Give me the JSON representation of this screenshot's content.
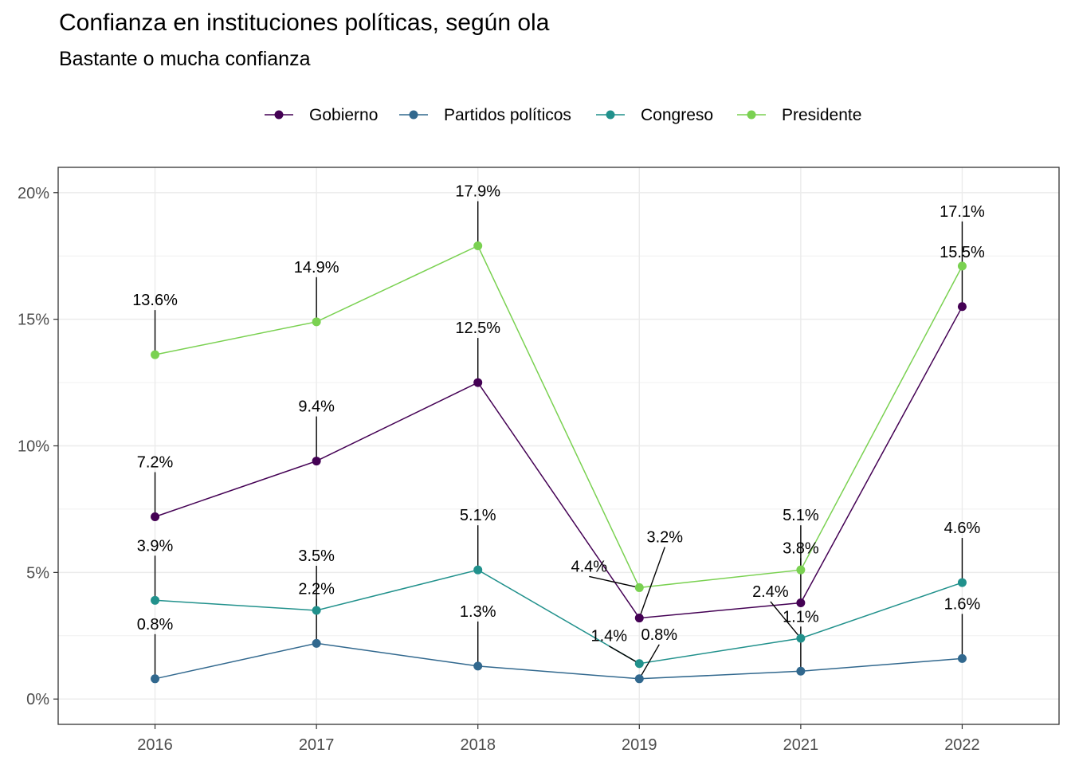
{
  "chart_data": {
    "type": "line",
    "title": "Confianza en instituciones políticas, según ola",
    "subtitle": "Bastante o mucha confianza",
    "xlabel": "",
    "ylabel": "",
    "categories": [
      "2016",
      "2017",
      "2018",
      "2019",
      "2021",
      "2022"
    ],
    "y_ticks": [
      "0%",
      "5%",
      "10%",
      "15%",
      "20%"
    ],
    "ylim": [
      -1,
      21
    ],
    "grid": true,
    "legend_position": "top",
    "series": [
      {
        "name": "Gobierno",
        "color": "#440154",
        "values": [
          7.2,
          9.4,
          12.5,
          3.2,
          3.8,
          15.5
        ],
        "labels": [
          "7.2%",
          "9.4%",
          "12.5%",
          "3.2%",
          "3.8%",
          "15.5%"
        ]
      },
      {
        "name": "Partidos políticos",
        "color": "#31688e",
        "values": [
          0.8,
          2.2,
          1.3,
          0.8,
          1.1,
          1.6
        ],
        "labels": [
          "0.8%",
          "2.2%",
          "1.3%",
          "0.8%",
          "1.1%",
          "1.6%"
        ]
      },
      {
        "name": "Congreso",
        "color": "#21918c",
        "values": [
          3.9,
          3.5,
          5.1,
          1.4,
          2.4,
          4.6
        ],
        "labels": [
          "3.9%",
          "3.5%",
          "5.1%",
          "1.4%",
          "2.4%",
          "4.6%"
        ]
      },
      {
        "name": "Presidente",
        "color": "#7ad151",
        "values": [
          13.6,
          14.9,
          17.9,
          4.4,
          5.1,
          17.1
        ],
        "labels": [
          "13.6%",
          "14.9%",
          "17.9%",
          "4.4%",
          "5.1%",
          "17.1%"
        ]
      }
    ]
  }
}
